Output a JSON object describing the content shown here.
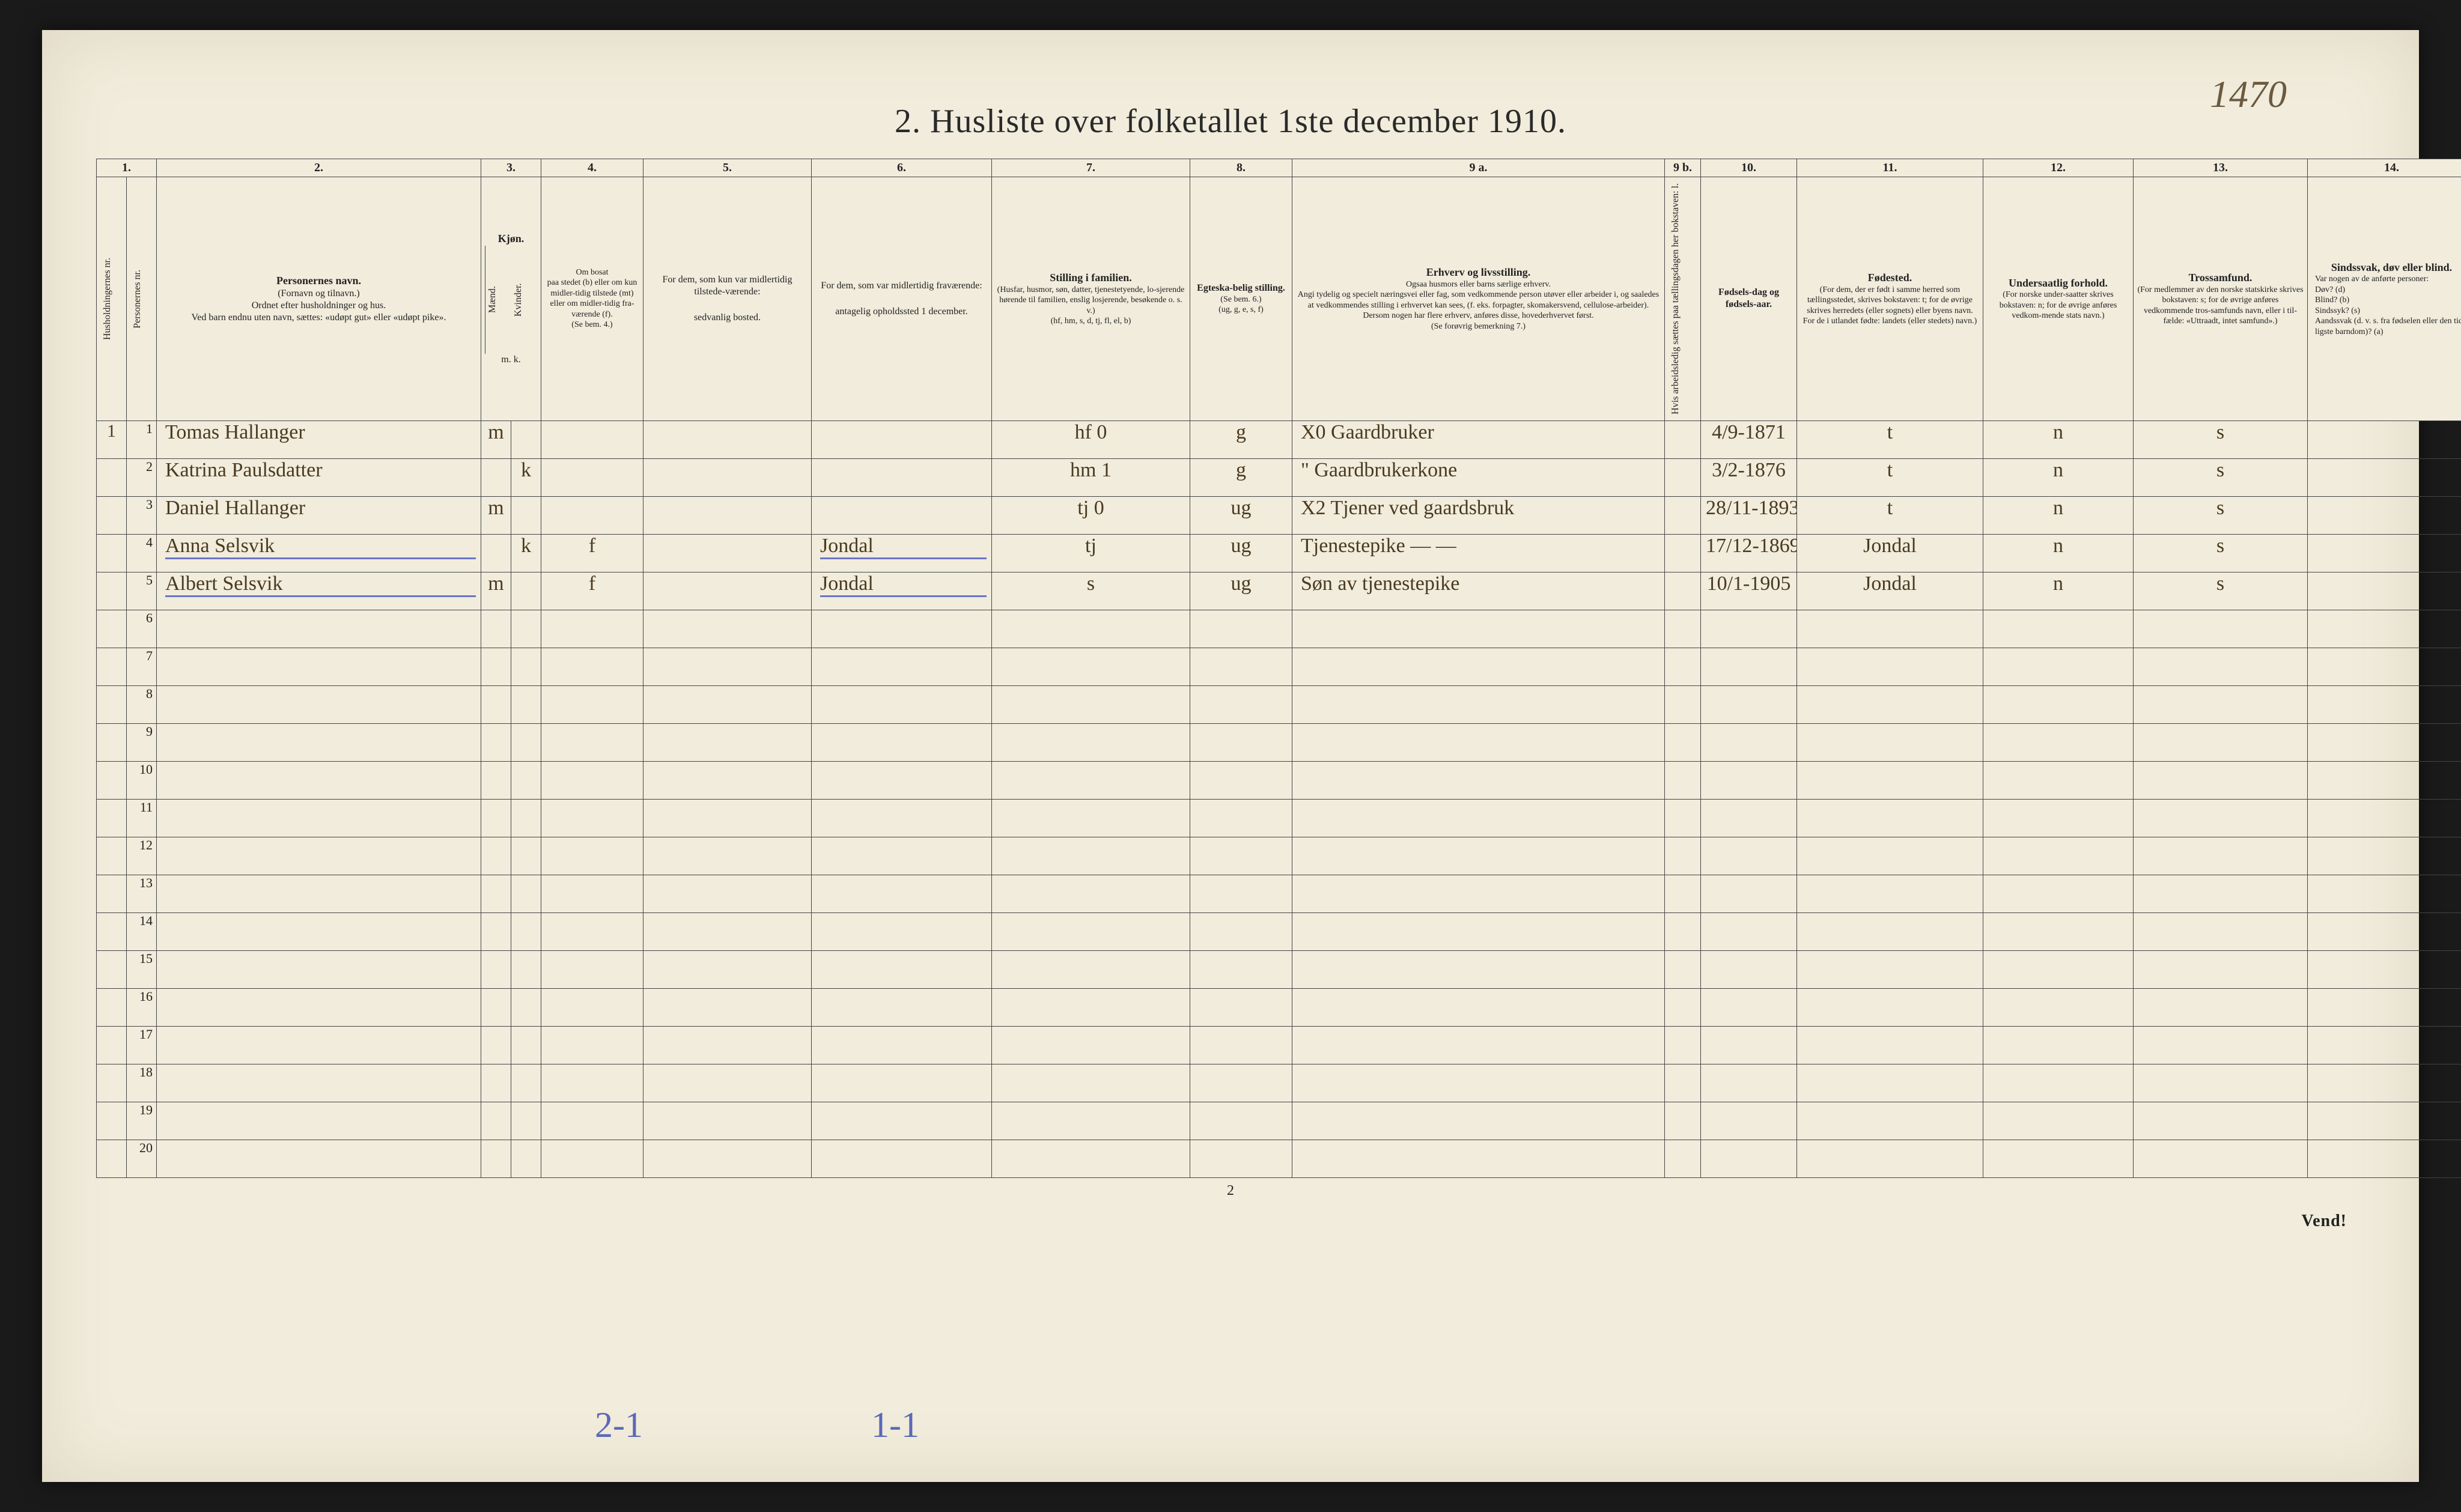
{
  "page_number_top": "1470",
  "title": "2.  Husliste over folketallet 1ste december 1910.",
  "footer_center": "2",
  "footer_right": "Vend!",
  "bottom_tally_1": "2-1",
  "bottom_tally_2": "1-1",
  "colors": {
    "paper": "#f1ecdc",
    "ink": "#222222",
    "handwriting": "#4a3a20",
    "underline": "#6a74c9",
    "background": "#2a2a2a"
  },
  "col_numbers": [
    "1.",
    "2.",
    "3.",
    "4.",
    "5.",
    "6.",
    "7.",
    "8.",
    "9 a.",
    "9 b.",
    "10.",
    "11.",
    "12.",
    "13.",
    "14."
  ],
  "headers": {
    "h1a": "Husholdningernes nr.",
    "h1b": "Personernes nr.",
    "h2": {
      "title": "Personernes navn.",
      "sub": "(Fornavn og tilnavn.)\nOrdnet efter husholdninger og hus.\nVed barn endnu uten navn, sættes: «udøpt gut» eller «udøpt pike»."
    },
    "h3": {
      "title": "Kjøn.",
      "m": "Mænd.",
      "k": "Kvinder.",
      "foot": "m.  k."
    },
    "h4": {
      "title": "Om bosat\npaa stedet (b) eller om kun midler-tidig tilstede (mt) eller om midler-tidig fra-værende (f).",
      "foot": "(Se bem. 4.)"
    },
    "h5": {
      "title": "For dem, som kun var midlertidig tilstede-værende:",
      "sub": "sedvanlig bosted."
    },
    "h6": {
      "title": "For dem, som var midlertidig fraværende:",
      "sub": "antagelig opholdssted 1 december."
    },
    "h7": {
      "title": "Stilling i familien.",
      "sub": "(Husfar, husmor, søn, datter, tjenestetyende, lo-sjerende hørende til familien, enslig losjerende, besøkende o. s. v.)\n(hf, hm, s, d, tj, fl, el, b)"
    },
    "h8": {
      "title": "Egteska-belig stilling.",
      "sub": "(Se bem. 6.)\n(ug, g, e, s, f)"
    },
    "h9a": {
      "title": "Erhverv og livsstilling.",
      "sub": "Ogsaa husmors eller barns særlige erhverv.\nAngi tydelig og specielt næringsvei eller fag, som vedkommende person utøver eller arbeider i, og saaledes at vedkommendes stilling i erhvervet kan sees, (f. eks. forpagter, skomakersvend, cellulose-arbeider). Dersom nogen har flere erhverv, anføres disse, hovederhvervet først.\n(Se forøvrig bemerkning 7.)"
    },
    "h9b": "Hvis arbeidsledig sættes paa tællingsdagen her bokstaven: l.",
    "h10": {
      "title": "Fødsels-dag og fødsels-aar."
    },
    "h11": {
      "title": "Fødested.",
      "sub": "(For dem, der er født i samme herred som tællingsstedet, skrives bokstaven: t; for de øvrige skrives herredets (eller sognets) eller byens navn. For de i utlandet fødte: landets (eller stedets) navn.)"
    },
    "h12": {
      "title": "Undersaatlig forhold.",
      "sub": "(For norske under-saatter skrives bokstaven: n; for de øvrige anføres vedkom-mende stats navn.)"
    },
    "h13": {
      "title": "Trossamfund.",
      "sub": "(For medlemmer av den norske statskirke skrives bokstaven: s; for de øvrige anføres vedkommende tros-samfunds navn, eller i til-fælde: «Uttraadt, intet samfund».)"
    },
    "h14": {
      "title": "Sindssvak, døv eller blind.",
      "sub": "Var nogen av de anførte personer:\nDøv?      (d)\nBlind?    (b)\nSindssyk? (s)\nAandssvak (d. v. s. fra fødselen eller den tid-ligste barndom)? (a)"
    }
  },
  "rows": [
    {
      "hh": "1",
      "pn": "1",
      "name": "Tomas Hallanger",
      "sex_m": "m",
      "sex_k": "",
      "bosat": "",
      "c5": "",
      "c6": "",
      "c7": "hf",
      "c7x": "0",
      "c8": "g",
      "c9a": "X0 Gaardbruker",
      "c9b": "",
      "c10": "4/9-1871",
      "c11": "t",
      "c12": "n",
      "c13": "s",
      "c14": ""
    },
    {
      "hh": "",
      "pn": "2",
      "name": "Katrina Paulsdatter",
      "sex_m": "",
      "sex_k": "k",
      "bosat": "",
      "c5": "",
      "c6": "",
      "c7": "hm",
      "c7x": "1",
      "c8": "g",
      "c9a": "\" Gaardbrukerkone",
      "c9b": "",
      "c10": "3/2-1876",
      "c11": "t",
      "c12": "n",
      "c13": "s",
      "c14": ""
    },
    {
      "hh": "",
      "pn": "3",
      "name": "Daniel Hallanger",
      "sex_m": "m",
      "sex_k": "",
      "bosat": "",
      "c5": "",
      "c6": "",
      "c7": "tj",
      "c7x": "0",
      "c8": "ug",
      "c9a": "X2 Tjener ved gaardsbruk",
      "c9b": "",
      "c10": "28/11-1893",
      "c11": "t",
      "c12": "n",
      "c13": "s",
      "c14": ""
    },
    {
      "hh": "",
      "pn": "4",
      "name": "Anna Selsvik",
      "sex_m": "",
      "sex_k": "k",
      "bosat": "f",
      "c5": "",
      "c6": "Jondal",
      "c7": "tj",
      "c7x": "",
      "c8": "ug",
      "c9a": "Tjenestepike — —",
      "c9b": "",
      "c10": "17/12-1869",
      "c11": "Jondal",
      "c12": "n",
      "c13": "s",
      "c14": "",
      "underline": true
    },
    {
      "hh": "",
      "pn": "5",
      "name": "Albert Selsvik",
      "sex_m": "m",
      "sex_k": "",
      "bosat": "f",
      "c5": "",
      "c6": "Jondal",
      "c7": "s",
      "c7x": "",
      "c8": "ug",
      "c9a": "Søn av tjenestepike",
      "c9b": "",
      "c10": "10/1-1905",
      "c11": "Jondal",
      "c12": "n",
      "c13": "s",
      "c14": "",
      "underline": true
    }
  ],
  "empty_row_count": 15,
  "empty_row_start": 6
}
